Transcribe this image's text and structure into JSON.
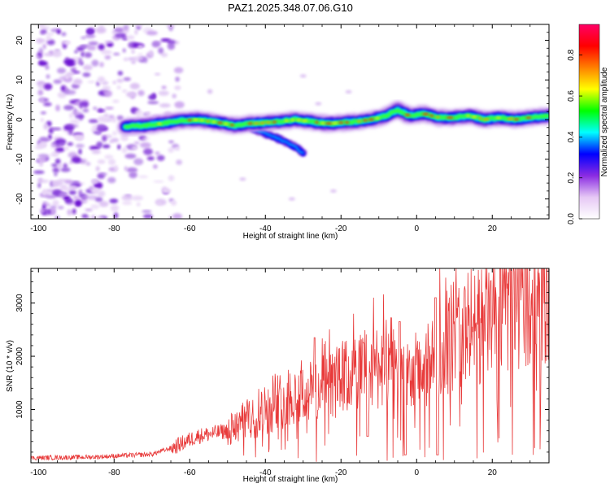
{
  "figure_title": "PAZ1.2025.348.07.06.G10",
  "chart_data": [
    {
      "type": "heatmap",
      "name": "spectrogram",
      "xlabel": "Height of straight line (km)",
      "ylabel": "Frequency (Hz)",
      "xlim": [
        -102,
        35
      ],
      "ylim": [
        -25,
        24
      ],
      "xticks": [
        -100,
        -80,
        -60,
        -40,
        -20,
        0,
        20
      ],
      "xtick_labels": [
        "-100",
        "-80",
        "-60",
        "-40",
        "-20",
        "0",
        "20"
      ],
      "yticks": [
        -20,
        -10,
        0,
        10,
        20
      ],
      "ytick_labels": [
        "-20",
        "-10",
        "0",
        "10",
        "20"
      ],
      "ridge": {
        "height_km": [
          -77,
          -72,
          -66,
          -62,
          -58,
          -52,
          -48,
          -44,
          -40,
          -36,
          -32,
          -28,
          -24,
          -20,
          -16,
          -12,
          -8,
          -5,
          -2,
          2,
          6,
          10,
          14,
          18,
          22,
          26,
          30,
          35
        ],
        "frequency_hz": [
          -1.8,
          -1.5,
          -0.8,
          -0.2,
          0.0,
          -0.8,
          -1.5,
          -1.0,
          -0.8,
          -0.5,
          0.0,
          -0.5,
          -1.0,
          -0.8,
          -0.5,
          0.0,
          1.0,
          2.5,
          1.0,
          1.5,
          0.5,
          0.5,
          1.0,
          0.0,
          0.5,
          0.0,
          0.5,
          1.0
        ]
      },
      "side_branch": {
        "height_km": [
          -44,
          -40,
          -36,
          -32,
          -30
        ],
        "frequency_hz": [
          -2,
          -3.5,
          -5,
          -7,
          -8.5
        ]
      },
      "noise_region_km": [
        -100,
        -62
      ],
      "colorbar": {
        "label": "Normalized spectral amplitude",
        "range": [
          0,
          0.95
        ],
        "ticks": [
          0.0,
          0.2,
          0.4,
          0.6,
          0.8
        ],
        "tick_labels": [
          "0.0",
          "0.2",
          "0.4",
          "0.6",
          "0.8"
        ],
        "colors": [
          "#ffffff",
          "#e6c8f5",
          "#8a2be2",
          "#0000ff",
          "#00ffff",
          "#00ff00",
          "#ffff00",
          "#ff8000",
          "#ff0000",
          "#ff0066"
        ]
      }
    },
    {
      "type": "line",
      "name": "snr",
      "xlabel": "Height of straight line (km)",
      "ylabel": "SNR (10 * v/v)",
      "xlim": [
        -102,
        35
      ],
      "ylim": [
        0,
        3650
      ],
      "xticks": [
        -100,
        -80,
        -60,
        -40,
        -20,
        0,
        20
      ],
      "xtick_labels": [
        "-100",
        "-80",
        "-60",
        "-40",
        "-20",
        "0",
        "20"
      ],
      "yticks": [
        1000,
        2000,
        3000
      ],
      "ytick_labels": [
        "1000",
        "2000",
        "3000"
      ],
      "color": "#e83a3a",
      "trend": {
        "x": [
          -102,
          -85,
          -70,
          -64,
          -58,
          -50,
          -44,
          -40,
          -34,
          -26,
          -20,
          -12,
          -6,
          -2,
          2,
          6,
          10,
          16,
          22,
          28,
          35
        ],
        "y": [
          90,
          110,
          160,
          300,
          500,
          600,
          800,
          1000,
          1250,
          1350,
          1550,
          1800,
          1900,
          1500,
          1700,
          2200,
          2400,
          2600,
          2900,
          3150,
          3300
        ]
      },
      "deep_dips": [
        {
          "x": -3.0,
          "y": 150
        },
        {
          "x": 5.5,
          "y": 150
        },
        {
          "x": -13.0,
          "y": 500
        }
      ],
      "spikes": [
        {
          "x": 5.0,
          "y": 3100
        },
        {
          "x": -4.5,
          "y": 2650
        },
        {
          "x": -14.0,
          "y": 2250
        },
        {
          "x": -27.0,
          "y": 2350
        }
      ]
    }
  ]
}
